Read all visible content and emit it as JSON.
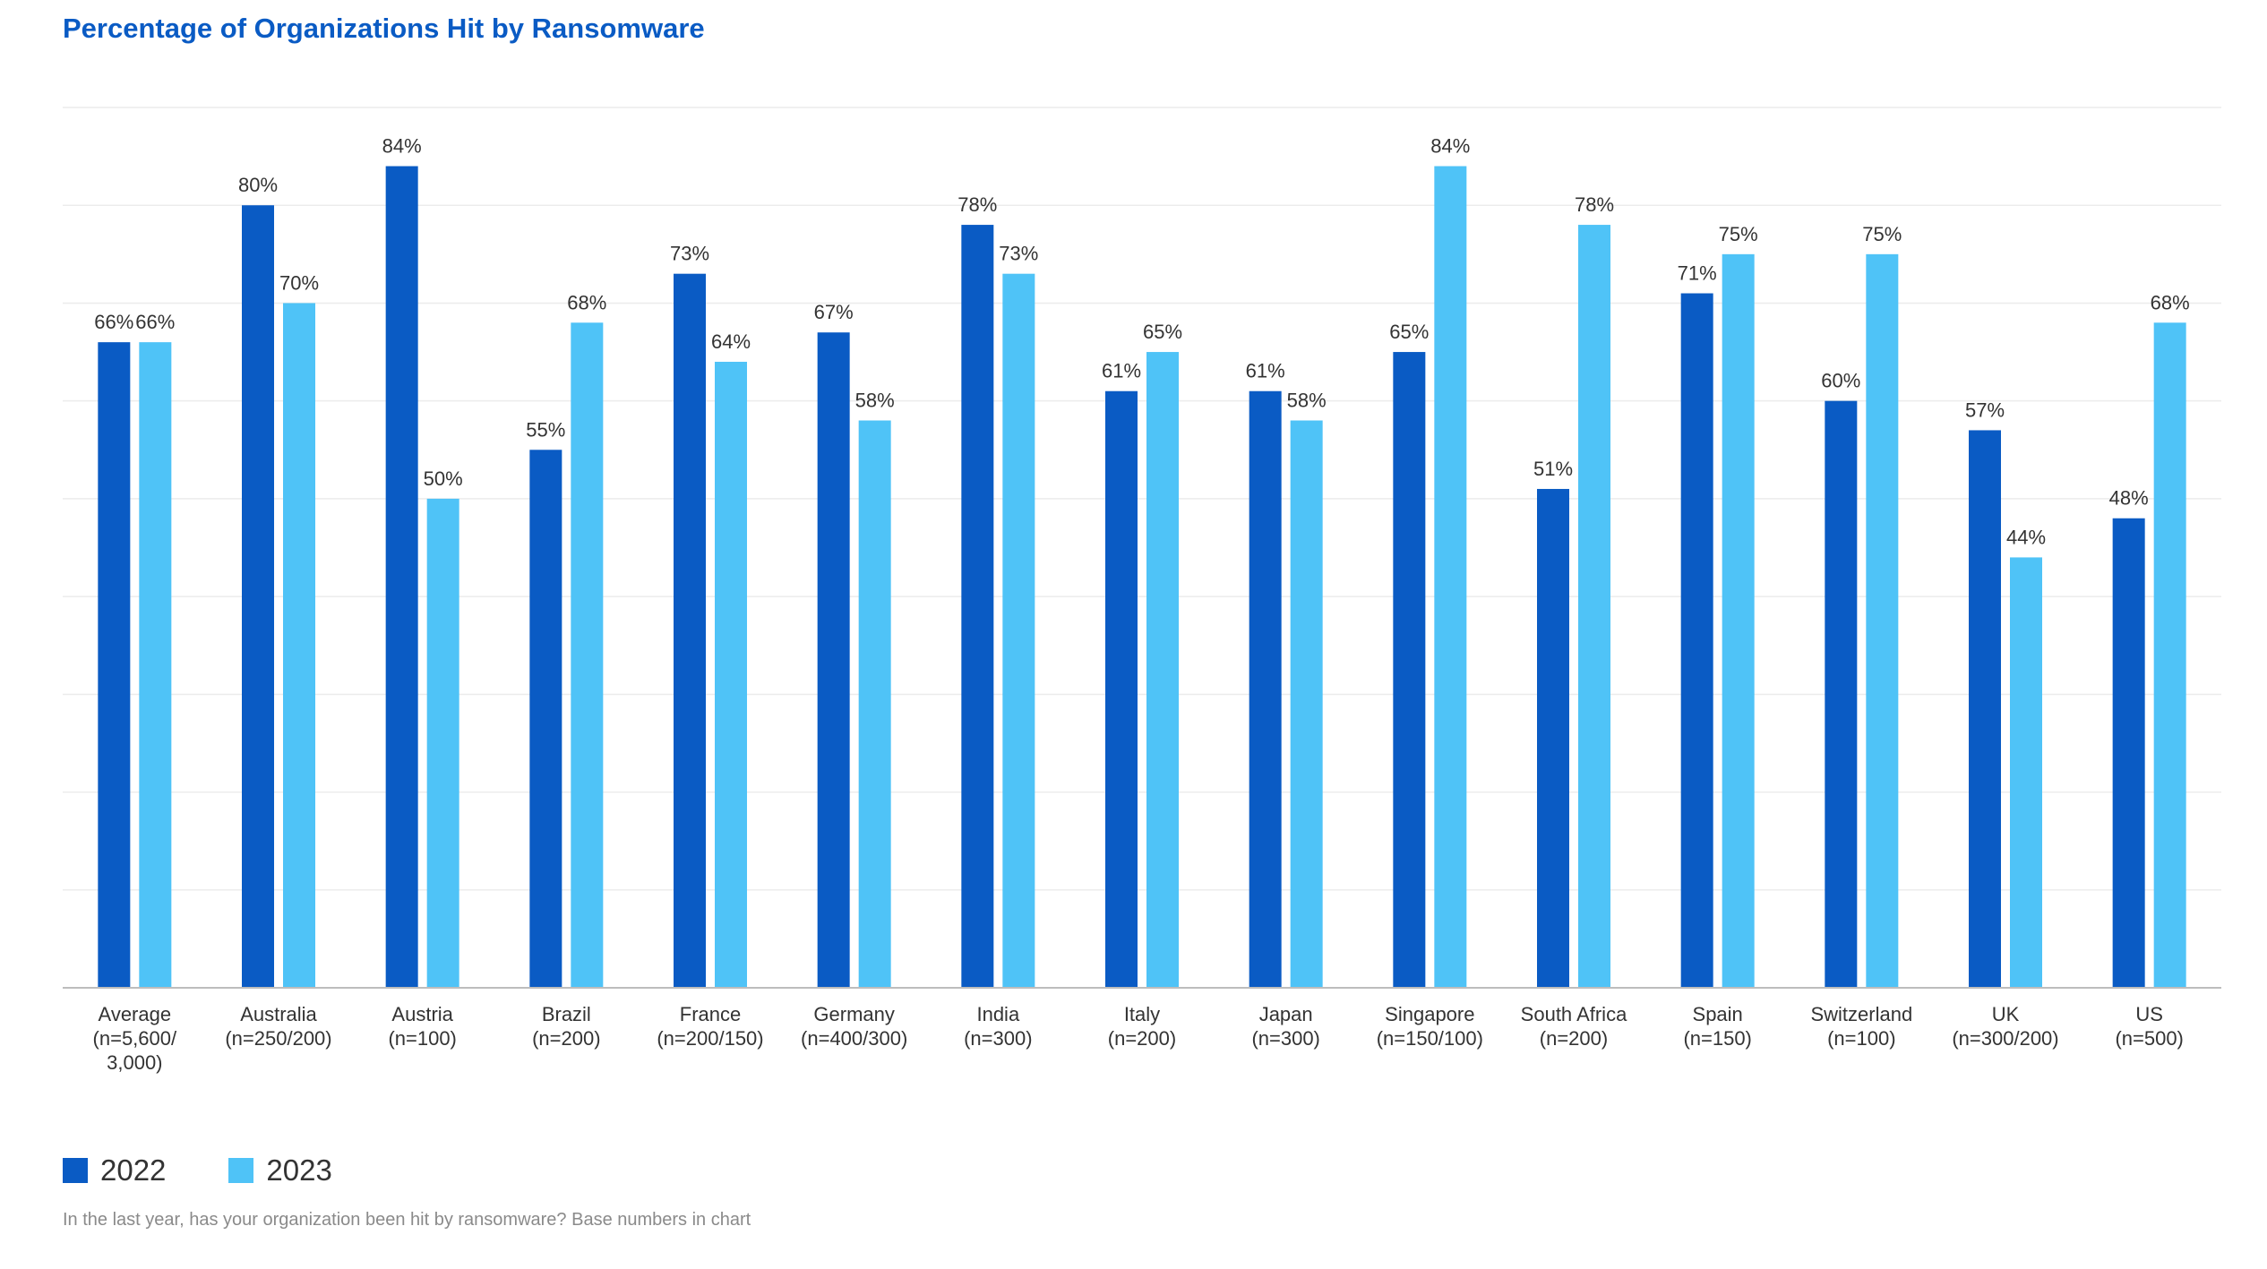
{
  "chart_data": {
    "type": "bar",
    "title": "Percentage of Organizations Hit by Ransomware",
    "categories": [
      [
        "Average",
        "(n=5,600/",
        "3,000)"
      ],
      [
        "Australia",
        "(n=250/200)"
      ],
      [
        "Austria",
        "(n=100)"
      ],
      [
        "Brazil",
        "(n=200)"
      ],
      [
        "France",
        "(n=200/150)"
      ],
      [
        "Germany",
        "(n=400/300)"
      ],
      [
        "India",
        "(n=300)"
      ],
      [
        "Italy",
        "(n=200)"
      ],
      [
        "Japan",
        "(n=300)"
      ],
      [
        "Singapore",
        "(n=150/100)"
      ],
      [
        "South Africa",
        "(n=200)"
      ],
      [
        "Spain",
        "(n=150)"
      ],
      [
        "Switzerland",
        "(n=100)"
      ],
      [
        "UK",
        "(n=300/200)"
      ],
      [
        "US",
        "(n=500)"
      ]
    ],
    "series": [
      {
        "name": "2022",
        "color": "#0a5bc4",
        "values": [
          66,
          80,
          84,
          55,
          73,
          67,
          78,
          61,
          61,
          65,
          51,
          71,
          60,
          57,
          48
        ],
        "labels": [
          "66%",
          "80%",
          "84%",
          "55%",
          "73%",
          "67%",
          "78%",
          "61%",
          "61%",
          "65%",
          "51%",
          "71%",
          "60%",
          "57%",
          "48%"
        ]
      },
      {
        "name": "2023",
        "color": "#4fc3f7",
        "values": [
          66,
          70,
          50,
          68,
          64,
          58,
          73,
          65,
          58,
          84,
          78,
          75,
          75,
          44,
          68
        ],
        "labels": [
          "66%",
          "70%",
          "50%",
          "68%",
          "64%",
          "58%",
          "73%",
          "65%",
          "58%",
          "84%",
          "78%",
          "75%",
          "75%",
          "44%",
          "68%"
        ]
      }
    ],
    "ylim": [
      0,
      90
    ],
    "grid": true,
    "legend_position": "bottom-left"
  },
  "footnote": "In the last year, has your organization been hit by ransomware? Base numbers in chart"
}
